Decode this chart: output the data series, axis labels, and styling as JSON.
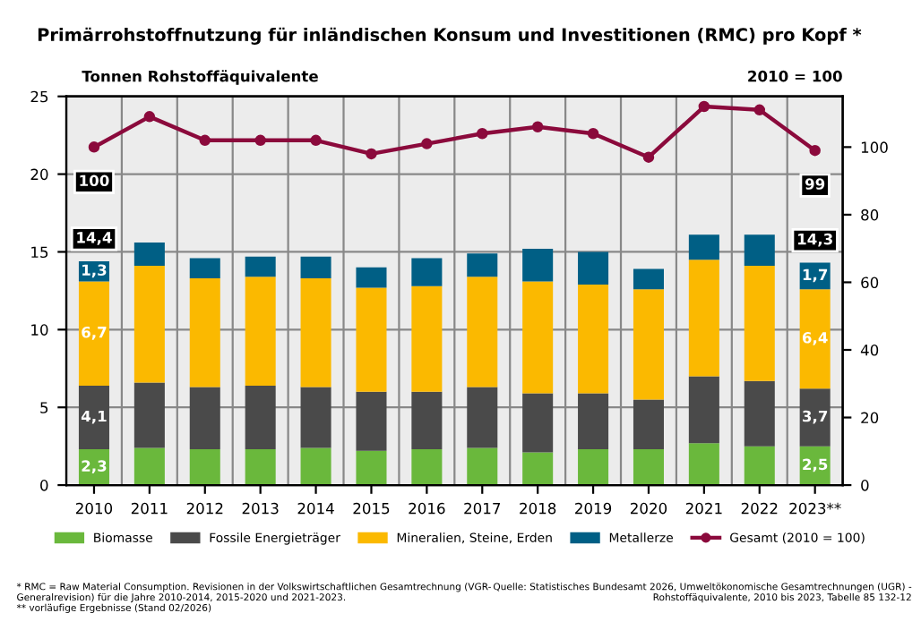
{
  "chart_data": {
    "type": "bar",
    "stacked": true,
    "title": "Primärrohstoffnutzung für inländischen Konsum und Investitionen (RMC) pro Kopf *",
    "ylabel": "Tonnen Rohstoffäquivalente",
    "y2label": "2010 = 100",
    "categories": [
      "2010",
      "2011",
      "2012",
      "2013",
      "2014",
      "2015",
      "2016",
      "2017",
      "2018",
      "2019",
      "2020",
      "2021",
      "2022",
      "2023**"
    ],
    "series": [
      {
        "name": "Biomasse",
        "color": "#6ab83c",
        "values": [
          2.3,
          2.4,
          2.3,
          2.3,
          2.4,
          2.2,
          2.3,
          2.4,
          2.1,
          2.3,
          2.3,
          2.7,
          2.5,
          2.5
        ],
        "value_labels": [
          "2,3",
          null,
          null,
          null,
          null,
          null,
          null,
          null,
          null,
          null,
          null,
          null,
          null,
          "2,5"
        ]
      },
      {
        "name": "Fossile Energieträger",
        "color": "#4a4a4a",
        "values": [
          4.1,
          4.2,
          4.0,
          4.1,
          3.9,
          3.8,
          3.7,
          3.9,
          3.8,
          3.6,
          3.2,
          4.3,
          4.2,
          3.7
        ],
        "value_labels": [
          "4,1",
          null,
          null,
          null,
          null,
          null,
          null,
          null,
          null,
          null,
          null,
          null,
          null,
          "3,7"
        ]
      },
      {
        "name": "Mineralien, Steine, Erden",
        "color": "#fbb900",
        "values": [
          6.7,
          7.5,
          7.0,
          7.0,
          7.0,
          6.7,
          6.8,
          7.1,
          7.2,
          7.0,
          7.1,
          7.5,
          7.4,
          6.4
        ],
        "value_labels": [
          "6,7",
          null,
          null,
          null,
          null,
          null,
          null,
          null,
          null,
          null,
          null,
          null,
          null,
          "6,4"
        ]
      },
      {
        "name": "Metallerze",
        "color": "#005f85",
        "values": [
          1.3,
          1.5,
          1.3,
          1.3,
          1.4,
          1.3,
          1.8,
          1.5,
          2.1,
          2.1,
          1.3,
          1.6,
          2.0,
          1.7
        ],
        "value_labels": [
          "1,3",
          null,
          null,
          null,
          null,
          null,
          null,
          null,
          null,
          null,
          null,
          null,
          null,
          "1,7"
        ]
      },
      {
        "name": "Gesamt (2010 = 100)",
        "type": "line",
        "axis": "y2",
        "color": "#8b0a3c",
        "marker": "circle",
        "values": [
          100,
          109,
          102,
          102,
          102,
          98,
          101,
          104,
          106,
          104,
          97,
          112,
          111,
          99
        ],
        "value_labels": [
          "100",
          null,
          null,
          null,
          null,
          null,
          null,
          null,
          null,
          null,
          null,
          null,
          null,
          "99"
        ]
      }
    ],
    "totals": [
      "14,4",
      null,
      null,
      null,
      null,
      null,
      null,
      null,
      null,
      null,
      null,
      null,
      null,
      "14,3"
    ],
    "ylim": [
      0,
      25
    ],
    "yticks": [
      0,
      5,
      10,
      15,
      20,
      25
    ],
    "y2lim": [
      0,
      115
    ],
    "y2ticks": [
      0,
      20,
      40,
      60,
      80,
      100
    ],
    "grid": true,
    "legend": "bottom",
    "annotations": [
      "* RMC = Raw Material Consumption. Revisionen in der Volkswirtschaftlichen Gesamtrechnung (VGR-\nGeneralrevision) für die Jahre 2010-2014, 2015-2020 und 2021-2023.\n** vorläufige Ergebnisse (Stand 02/2026)",
      "Quelle: Statistisches Bundesamt 2026, Umweltökonomische Gesamtrechnungen (UGR) -\nRohstoffäquivalente, 2010 bis 2023, Tabelle 85 132-12"
    ]
  }
}
